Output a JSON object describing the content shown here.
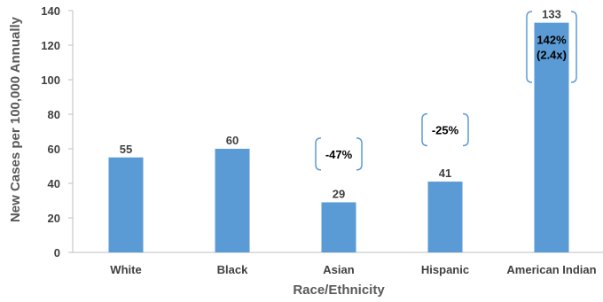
{
  "chart_data": {
    "type": "bar",
    "title": "",
    "xlabel": "Race/Ethnicity",
    "ylabel": "New Cases per 100,000 Annually",
    "categories": [
      "White",
      "Black",
      "Asian",
      "Hispanic",
      "American Indian"
    ],
    "values": [
      55,
      60,
      29,
      41,
      133
    ],
    "data_labels": [
      "55",
      "60",
      "29",
      "41",
      "133"
    ],
    "ylim": [
      0,
      140
    ],
    "yticks": [
      0,
      20,
      40,
      60,
      80,
      100,
      120,
      140
    ],
    "grid": false,
    "bar_color": "#5B9BD5",
    "annotations": [
      {
        "category": "Asian",
        "lines": [
          "-47%"
        ],
        "y": 57
      },
      {
        "category": "Hispanic",
        "lines": [
          "-25%"
        ],
        "y": 71
      },
      {
        "category": "American Indian",
        "lines": [
          "142%",
          "(2.4x)"
        ],
        "y": 119
      }
    ]
  }
}
